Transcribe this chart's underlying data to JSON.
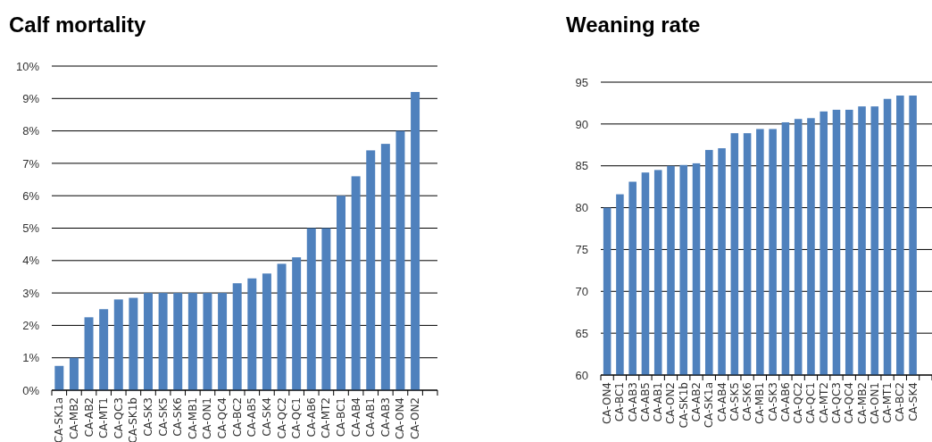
{
  "chart_data": [
    {
      "type": "bar",
      "title": "Calf mortality",
      "categories": [
        "CA-SK1a",
        "CA-MB2",
        "CA-AB2",
        "CA-MT1",
        "CA-QC3",
        "CA-SK1b",
        "CA-SK3",
        "CA-SK5",
        "CA-SK6",
        "CA-MB1",
        "CA-ON1",
        "CA-QC4",
        "CA-BC2",
        "CA-AB5",
        "CA-SK4",
        "CA-QC2",
        "CA-QC1",
        "CA-AB6",
        "CA-MT2",
        "CA-BC1",
        "CA-AB4",
        "CA-AB1",
        "CA-AB3",
        "CA-ON4",
        "CA-ON2",
        null
      ],
      "values": [
        0.75,
        1.0,
        2.25,
        2.5,
        2.8,
        2.85,
        3.0,
        3.0,
        3.0,
        3.0,
        3.0,
        3.0,
        3.3,
        3.45,
        3.6,
        3.9,
        4.1,
        5.0,
        5.0,
        6.0,
        6.6,
        7.4,
        7.6,
        8.0,
        9.2,
        null
      ],
      "color": "#4f81bd",
      "ylim": [
        0,
        10
      ],
      "yticks": [
        {
          "value": 0,
          "label": "0%"
        },
        {
          "value": 1,
          "label": "1%"
        },
        {
          "value": 2,
          "label": "2%"
        },
        {
          "value": 3,
          "label": "3%"
        },
        {
          "value": 4,
          "label": "4%"
        },
        {
          "value": 5,
          "label": "5%"
        },
        {
          "value": 6,
          "label": "6%"
        },
        {
          "value": 7,
          "label": "7%"
        },
        {
          "value": 8,
          "label": "8%"
        },
        {
          "value": 9,
          "label": "9%"
        },
        {
          "value": 10,
          "label": "10%"
        }
      ],
      "grid": "y"
    },
    {
      "type": "bar",
      "title": "Weaning rate",
      "categories": [
        "CA-ON4",
        "CA-BC1",
        "CA-AB3",
        "CA-AB5",
        "CA-AB1",
        "CA-ON2",
        "CA-SK1b",
        "CA-AB2",
        "CA-SK1a",
        "CA-AB4",
        "CA-SK5",
        "CA-SK6",
        "CA-MB1",
        "CA-SK3",
        "CA-AB6",
        "CA-QC2",
        "CA-QC1",
        "CA-MT2",
        "CA-QC3",
        "CA-QC4",
        "CA-MB2",
        "CA-ON1",
        "CA-MT1",
        "CA-BC2",
        "CA-SK4",
        null
      ],
      "values": [
        80.0,
        81.6,
        83.1,
        84.2,
        84.5,
        85.0,
        85.1,
        85.3,
        86.9,
        87.1,
        88.9,
        88.9,
        89.4,
        89.4,
        90.2,
        90.6,
        90.7,
        91.5,
        91.7,
        91.7,
        92.1,
        92.1,
        93.0,
        93.4,
        93.4,
        null
      ],
      "color": "#4f81bd",
      "ylim": [
        60,
        95
      ],
      "yticks": [
        60,
        65,
        70,
        75,
        80,
        85,
        90,
        95
      ],
      "grid": "y"
    }
  ]
}
